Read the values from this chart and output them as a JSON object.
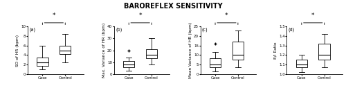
{
  "title": "BAROREFLEX SENSITIVITY",
  "panels": [
    {
      "label": "(a)",
      "ylabel": "SD of HR (bpm)",
      "ylim": [
        0,
        10
      ],
      "yticks": [
        0,
        2,
        4,
        6,
        8,
        10
      ],
      "case": {
        "median": 2.5,
        "q1": 1.8,
        "q3": 3.5,
        "whislo": 1.0,
        "whishi": 6.0,
        "fliers": []
      },
      "control": {
        "median": 5.0,
        "q1": 4.2,
        "q3": 6.0,
        "whislo": 2.5,
        "whishi": 8.5,
        "fliers": []
      }
    },
    {
      "label": "(b)",
      "ylabel": "Max. Variance of HR (bpm)",
      "ylim": [
        0,
        40
      ],
      "yticks": [
        0,
        10,
        20,
        30,
        40
      ],
      "case": {
        "median": 8.0,
        "q1": 5.5,
        "q3": 11.0,
        "whislo": 3.0,
        "whishi": 14.0,
        "fliers": [
          20.0
        ]
      },
      "control": {
        "median": 16.0,
        "q1": 13.5,
        "q3": 21.0,
        "whislo": 8.0,
        "whishi": 30.0,
        "fliers": []
      }
    },
    {
      "label": "(c)",
      "ylabel": "Mean Variance of HR (bpm)",
      "ylim": [
        0,
        25
      ],
      "yticks": [
        0,
        5,
        10,
        15,
        20,
        25
      ],
      "case": {
        "median": 5.0,
        "q1": 3.5,
        "q3": 8.5,
        "whislo": 1.5,
        "whishi": 11.5,
        "fliers": [
          16.0
        ]
      },
      "control": {
        "median": 10.0,
        "q1": 7.5,
        "q3": 17.0,
        "whislo": 3.5,
        "whishi": 23.0,
        "fliers": []
      }
    },
    {
      "label": "(d)",
      "ylabel": "E/I Ratio",
      "ylim": [
        1.0,
        1.5
      ],
      "yticks": [
        1.0,
        1.1,
        1.2,
        1.3,
        1.4,
        1.5
      ],
      "case": {
        "median": 1.1,
        "q1": 1.07,
        "q3": 1.15,
        "whislo": 1.02,
        "whishi": 1.2,
        "fliers": []
      },
      "control": {
        "median": 1.2,
        "q1": 1.15,
        "q3": 1.32,
        "whislo": 1.07,
        "whishi": 1.42,
        "fliers": []
      }
    }
  ],
  "xlabel_case": "Case",
  "xlabel_control": "Control",
  "sig_marker": "*",
  "box_color": "white",
  "box_edgecolor": "black",
  "median_color": "black",
  "flier_color": "black",
  "background_color": "white",
  "title_fontsize": 7,
  "label_fontsize": 4.2,
  "tick_fontsize": 4.0,
  "sig_fontsize": 6.5
}
